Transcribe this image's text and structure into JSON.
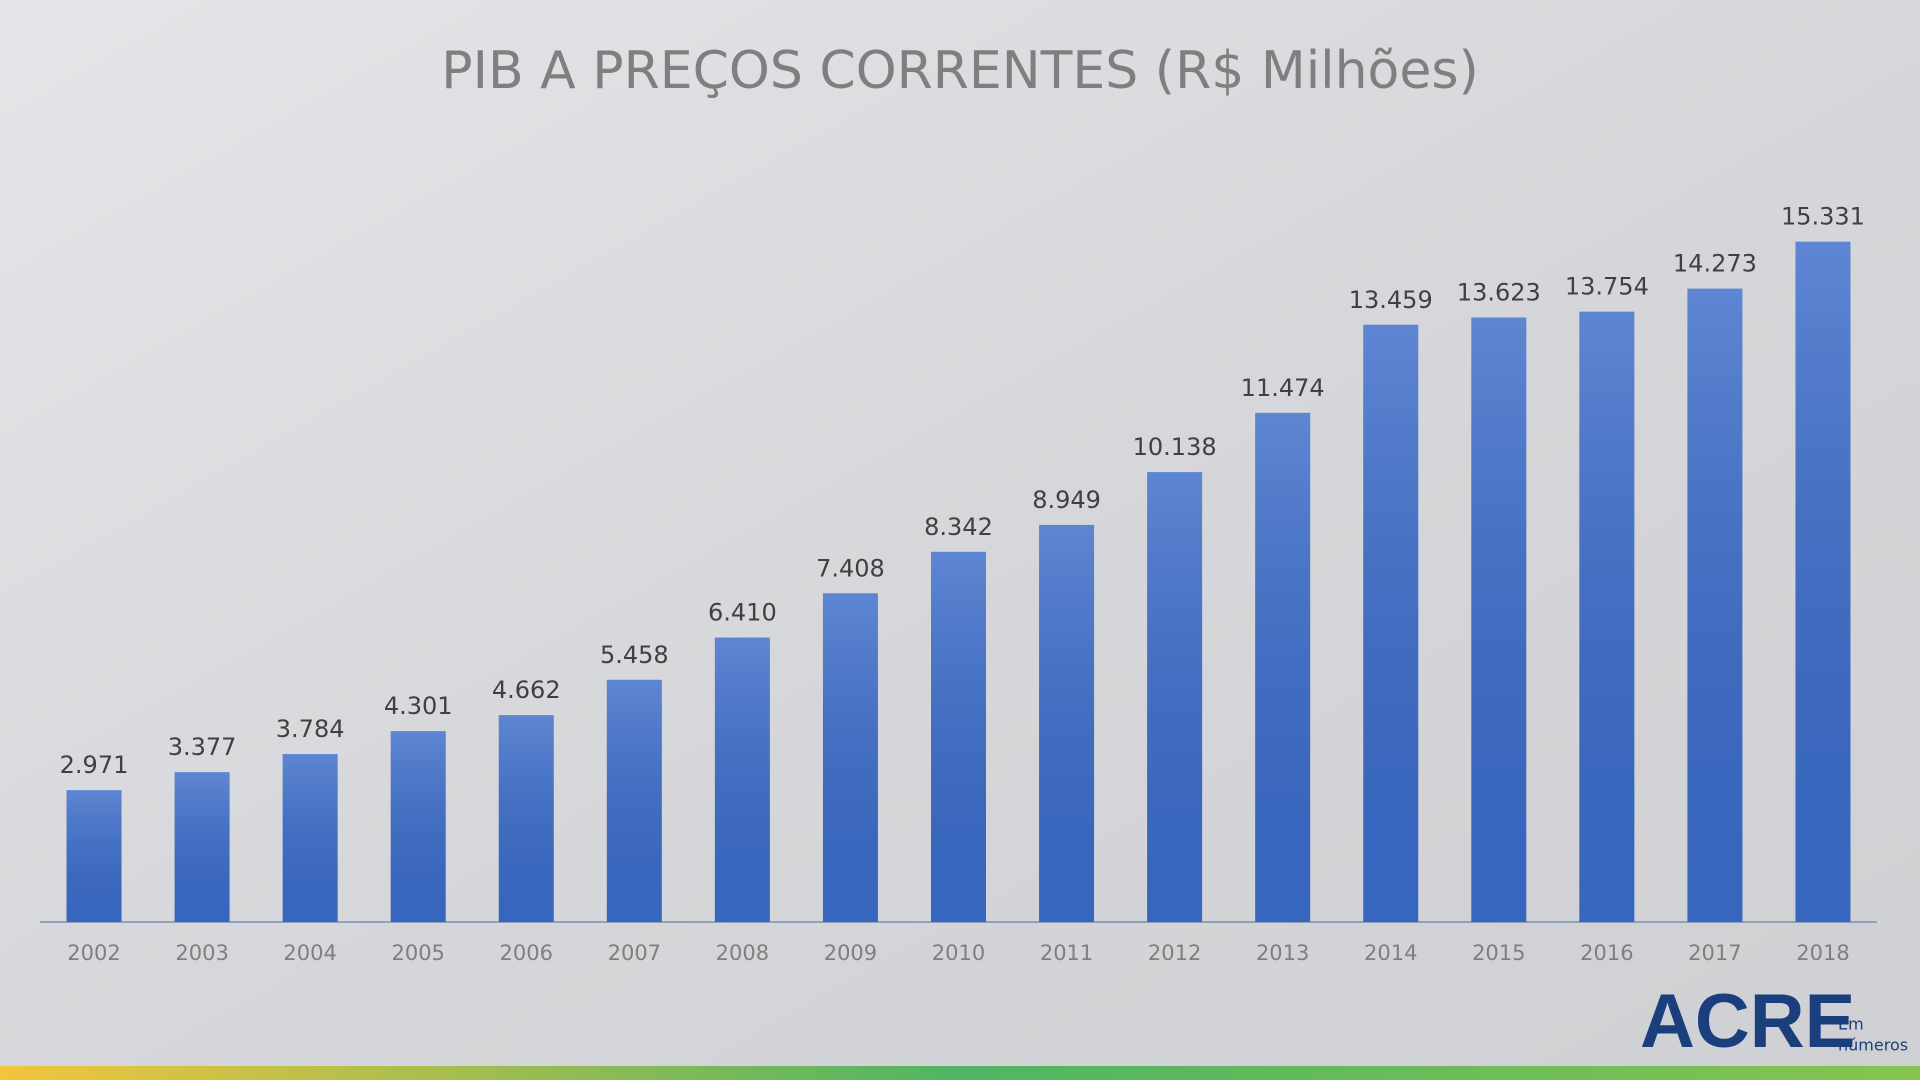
{
  "chart_data": {
    "type": "bar",
    "title": "PIB A PREÇOS CORRENTES (R$ Milhões)",
    "categories": [
      "2002",
      "2003",
      "2004",
      "2005",
      "2006",
      "2007",
      "2008",
      "2009",
      "2010",
      "2011",
      "2012",
      "2013",
      "2014",
      "2015",
      "2016",
      "2017",
      "2018"
    ],
    "values": [
      2971,
      3377,
      3784,
      4301,
      4662,
      5458,
      6410,
      7408,
      8342,
      8949,
      10138,
      11474,
      13459,
      13623,
      13754,
      14273,
      15331
    ],
    "value_labels": [
      "2.971",
      "3.377",
      "3.784",
      "4.301",
      "4.662",
      "5.458",
      "6.410",
      "7.408",
      "8.342",
      "8.949",
      "10.138",
      "11.474",
      "13.459",
      "13.623",
      "13.754",
      "14.273",
      "15.331"
    ],
    "color": "#3a6bc9",
    "ylim": [
      0,
      16000
    ],
    "grid": false
  },
  "logo": {
    "name": "ACRE",
    "tagline": [
      "Em",
      "números"
    ]
  }
}
